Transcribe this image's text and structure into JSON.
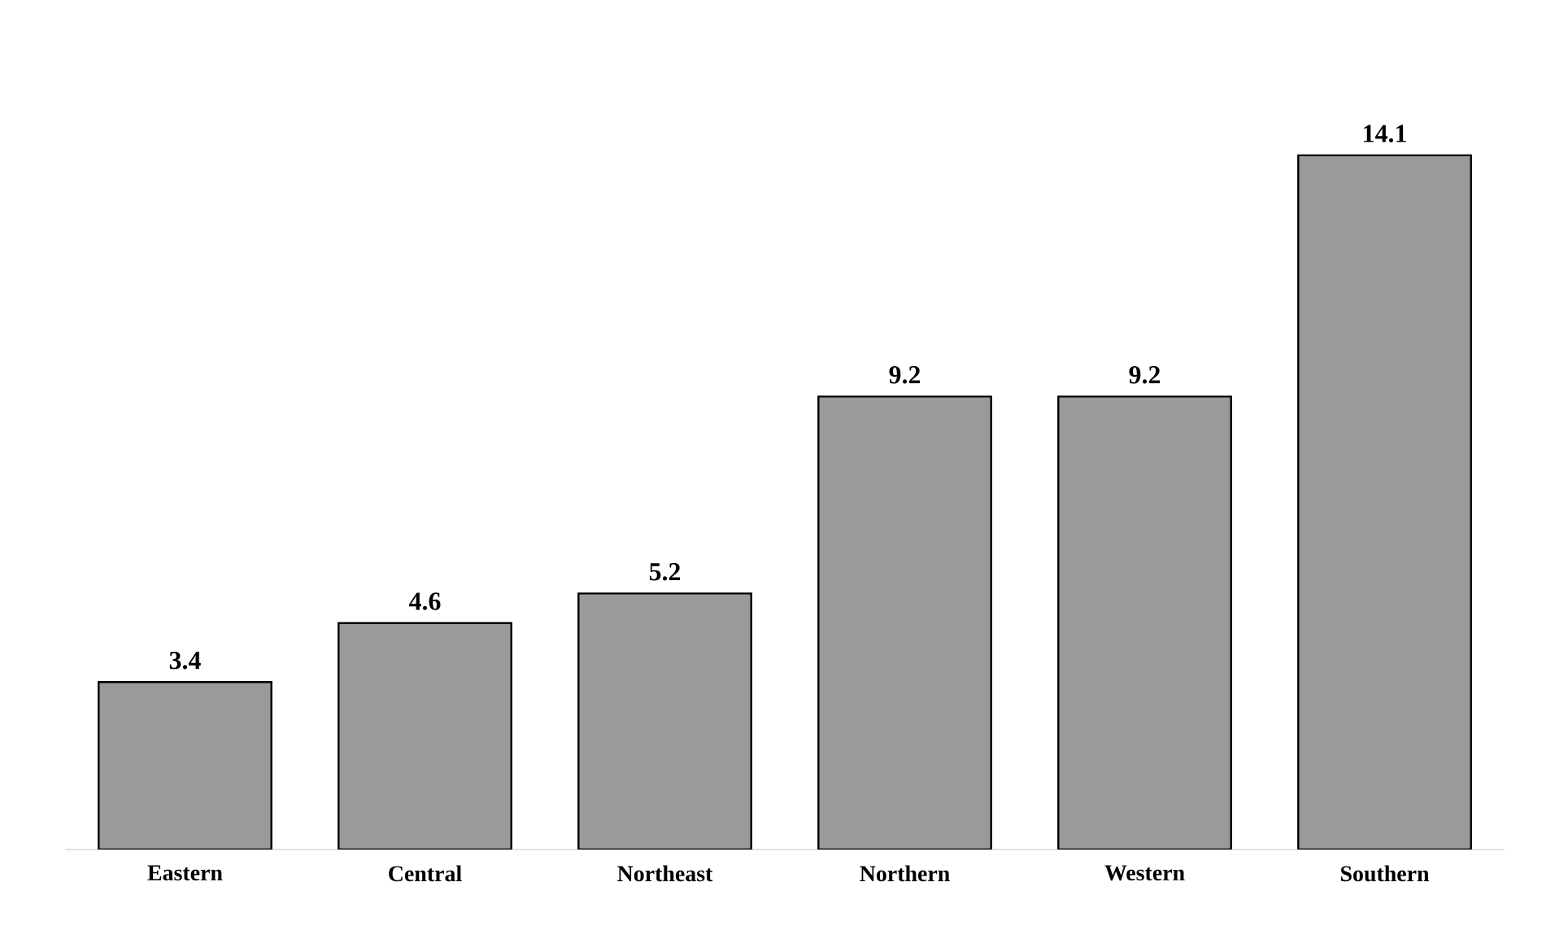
{
  "chart_data": {
    "type": "bar",
    "categories": [
      "Eastern",
      "Central",
      "Northeast",
      "Northern",
      "Western",
      "Southern"
    ],
    "values": [
      3.4,
      4.6,
      5.2,
      9.2,
      9.2,
      14.1
    ],
    "color": "#9a9a9a",
    "data_labels": true
  }
}
